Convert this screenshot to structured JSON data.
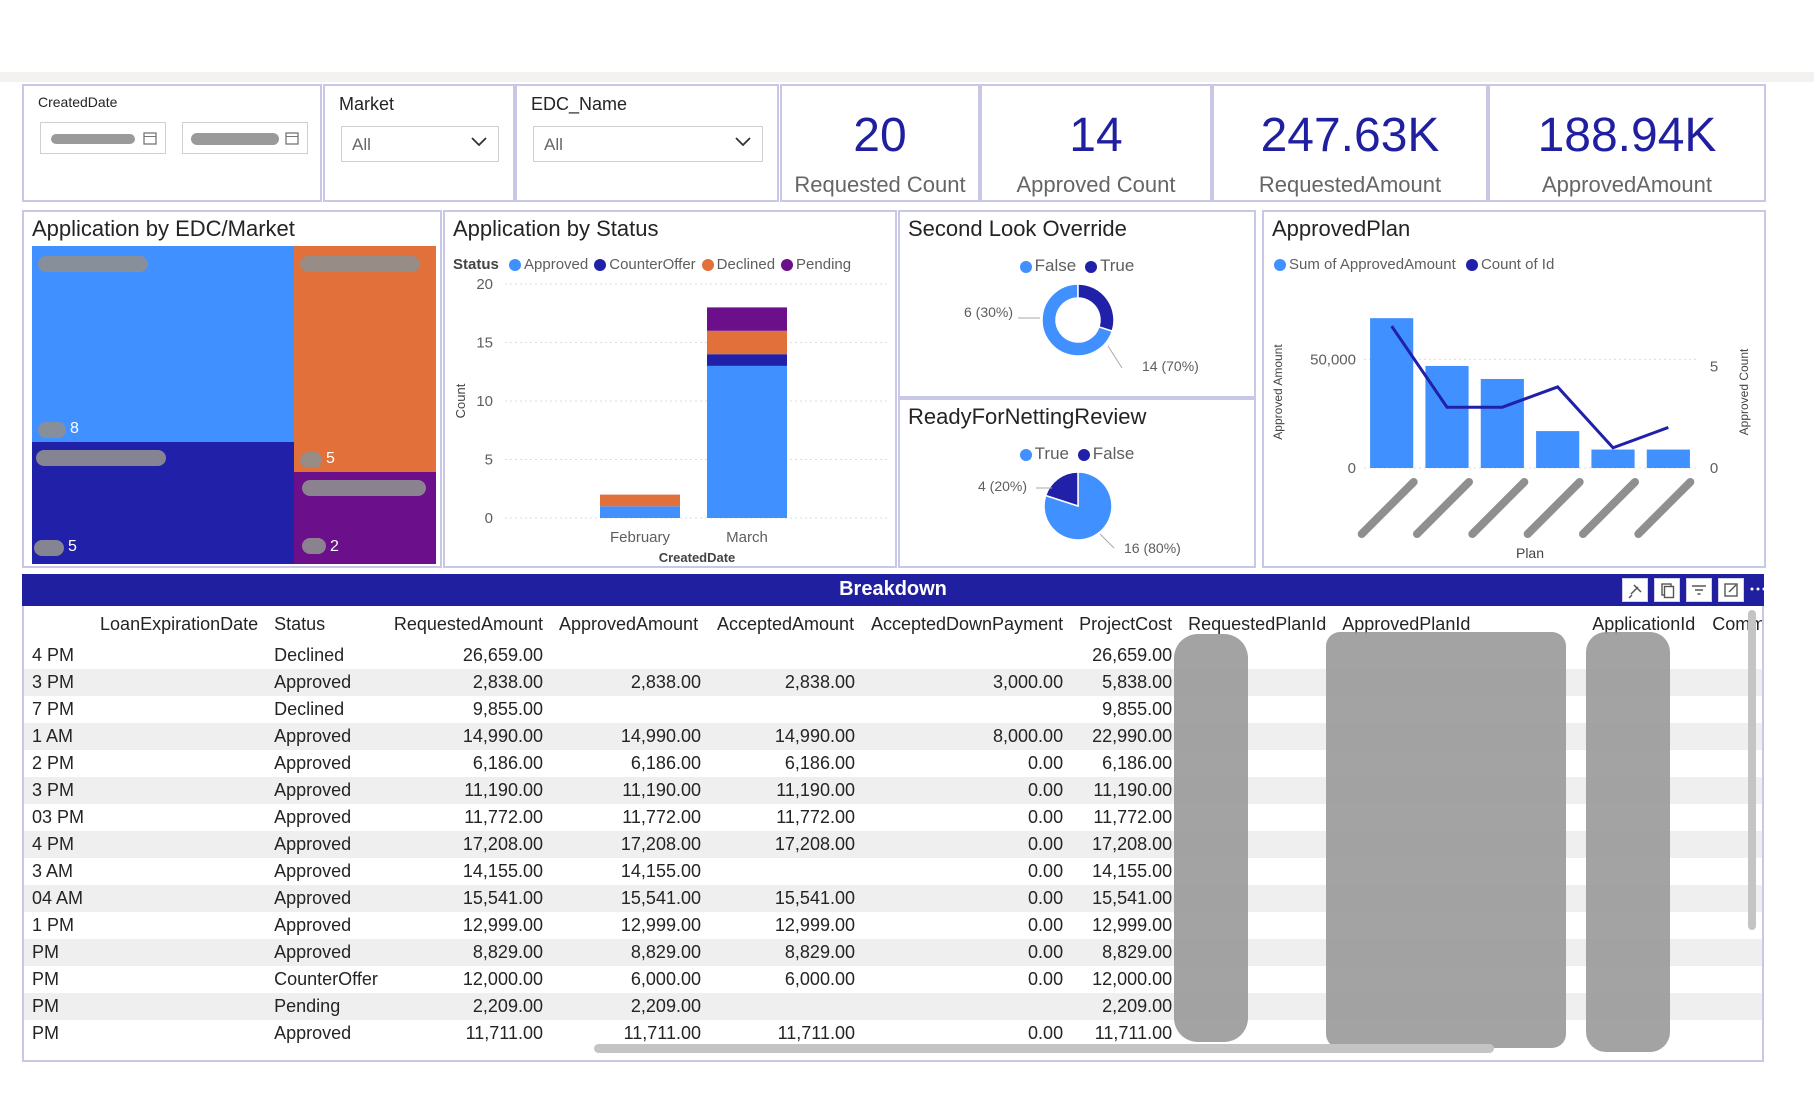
{
  "slicers": {
    "created_date": {
      "label": "CreatedDate"
    },
    "market": {
      "label": "Market",
      "value": "All"
    },
    "edc_name": {
      "label": "EDC_Name",
      "value": "All"
    }
  },
  "kpis": [
    {
      "value": "20",
      "label": "Requested Count"
    },
    {
      "value": "14",
      "label": "Approved Count"
    },
    {
      "value": "247.63K",
      "label": "RequestedAmount"
    },
    {
      "value": "188.94K",
      "label": "ApprovedAmount"
    }
  ],
  "treemap": {
    "title": "Application by EDC/Market",
    "tiles": [
      {
        "value": "8",
        "color": "#4190ff"
      },
      {
        "value": "5",
        "color": "#e2703a"
      },
      {
        "value": "5",
        "color": "#2020a8"
      },
      {
        "value": "2",
        "color": "#6b0f8a"
      }
    ]
  },
  "status_chart": {
    "title": "Application by Status",
    "legend_title": "Status",
    "xlabel": "CreatedDate",
    "ylabel": "Count",
    "yticks": [
      "0",
      "5",
      "10",
      "15",
      "20"
    ],
    "categories": [
      "February",
      "March"
    ]
  },
  "second_look": {
    "title": "Second Look Override",
    "legend": [
      {
        "label": "False",
        "color": "#4190ff"
      },
      {
        "label": "True",
        "color": "#2020a8"
      }
    ],
    "label_small": "6 (30%)",
    "label_large": "14 (70%)"
  },
  "netting": {
    "title": "ReadyForNettingReview",
    "legend": [
      {
        "label": "True",
        "color": "#4190ff"
      },
      {
        "label": "False",
        "color": "#2020a8"
      }
    ],
    "label_small": "4 (20%)",
    "label_large": "16 (80%)"
  },
  "approved_plan": {
    "title": "ApprovedPlan",
    "legend": [
      {
        "label": "Sum of ApprovedAmount",
        "color": "#4190ff"
      },
      {
        "label": "Count of Id",
        "color": "#2020a8"
      }
    ],
    "ylabel_left": "Approved Amount",
    "ylabel_right": "Approved Count",
    "xlabel": "Plan",
    "yticks_left": [
      "0",
      "50,000"
    ],
    "yticks_right": [
      "0",
      "5"
    ]
  },
  "chart_data": [
    {
      "type": "bar",
      "stacked": true,
      "categories": [
        "February",
        "March"
      ],
      "series": [
        {
          "name": "Approved",
          "color": "#4190ff",
          "values": [
            1,
            13
          ]
        },
        {
          "name": "CounterOffer",
          "color": "#2020a8",
          "values": [
            0,
            1
          ]
        },
        {
          "name": "Declined",
          "color": "#e2703a",
          "values": [
            1,
            2
          ]
        },
        {
          "name": "Pending",
          "color": "#6b0f8a",
          "values": [
            0,
            2
          ]
        }
      ],
      "ylim": [
        0,
        20
      ]
    },
    {
      "type": "pie",
      "donut": true,
      "slices": [
        {
          "name": "False",
          "value": 14
        },
        {
          "name": "True",
          "value": 6
        }
      ]
    },
    {
      "type": "pie",
      "slices": [
        {
          "name": "True",
          "value": 16
        },
        {
          "name": "False",
          "value": 4
        }
      ]
    },
    {
      "type": "bar",
      "combo_line": true,
      "bar_values": [
        69000,
        47000,
        41000,
        17000,
        8500,
        8500
      ],
      "line_values": [
        7,
        3,
        3,
        4,
        1,
        2
      ],
      "ylim_left": [
        0,
        70000
      ],
      "ylim_right": [
        0,
        7.5
      ]
    }
  ],
  "breakdown": {
    "title": "Breakdown",
    "columns": [
      "",
      "LoanExpirationDate",
      "Status",
      "RequestedAmount",
      "ApprovedAmount",
      "AcceptedAmount",
      "AcceptedDownPayment",
      "ProjectCost",
      "RequestedPlanId",
      "ApprovedPlanId",
      "ApplicationId",
      "Comm"
    ],
    "rows": [
      [
        "4 PM",
        "Declined",
        "26,659.00",
        "",
        "",
        "",
        "26,659.00"
      ],
      [
        "3 PM",
        "Approved",
        "2,838.00",
        "2,838.00",
        "2,838.00",
        "3,000.00",
        "5,838.00"
      ],
      [
        "7 PM",
        "Declined",
        "9,855.00",
        "",
        "",
        "",
        "9,855.00"
      ],
      [
        "1 AM",
        "Approved",
        "14,990.00",
        "14,990.00",
        "14,990.00",
        "8,000.00",
        "22,990.00"
      ],
      [
        "2 PM",
        "Approved",
        "6,186.00",
        "6,186.00",
        "6,186.00",
        "0.00",
        "6,186.00"
      ],
      [
        "3 PM",
        "Approved",
        "11,190.00",
        "11,190.00",
        "11,190.00",
        "0.00",
        "11,190.00"
      ],
      [
        "03 PM",
        "Approved",
        "11,772.00",
        "11,772.00",
        "11,772.00",
        "0.00",
        "11,772.00"
      ],
      [
        "4 PM",
        "Approved",
        "17,208.00",
        "17,208.00",
        "17,208.00",
        "0.00",
        "17,208.00"
      ],
      [
        "3 AM",
        "Approved",
        "14,155.00",
        "14,155.00",
        "",
        "0.00",
        "14,155.00"
      ],
      [
        "04 AM",
        "Approved",
        "15,541.00",
        "15,541.00",
        "15,541.00",
        "0.00",
        "15,541.00"
      ],
      [
        "1 PM",
        "Approved",
        "12,999.00",
        "12,999.00",
        "12,999.00",
        "0.00",
        "12,999.00"
      ],
      [
        "PM",
        "Approved",
        "8,829.00",
        "8,829.00",
        "8,829.00",
        "0.00",
        "8,829.00"
      ],
      [
        "PM",
        "CounterOffer",
        "12,000.00",
        "6,000.00",
        "6,000.00",
        "0.00",
        "12,000.00"
      ],
      [
        "PM",
        "Pending",
        "2,209.00",
        "2,209.00",
        "",
        "",
        "2,209.00"
      ],
      [
        "PM",
        "Approved",
        "11,711.00",
        "11,711.00",
        "11,711.00",
        "0.00",
        "11,711.00"
      ]
    ]
  }
}
